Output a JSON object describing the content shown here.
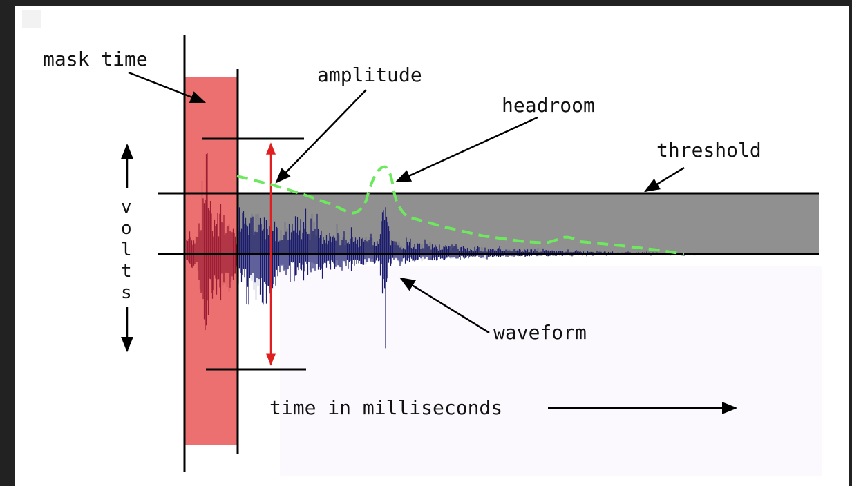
{
  "labels": {
    "mask_time": "mask time",
    "amplitude": "amplitude",
    "headroom": "headroom",
    "threshold": "threshold",
    "waveform": "waveform",
    "time_axis": "time in milliseconds",
    "volts": [
      "v",
      "o",
      "l",
      "t",
      "s"
    ]
  },
  "colors": {
    "background": "#222222",
    "canvas": "#ffffff",
    "mask_region": "#ec7070",
    "threshold_band": "#909090",
    "waveform": "#1c1c6e",
    "waveform_masked": "#9b1e35",
    "headroom_curve": "#6ee85e",
    "amplitude_arrow": "#e02020",
    "lines": "#000000"
  }
}
